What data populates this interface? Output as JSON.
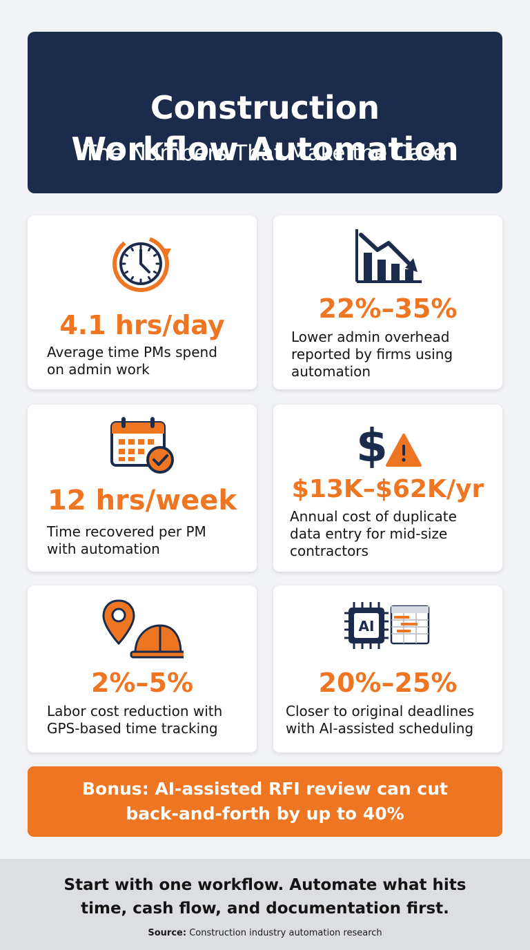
{
  "header": {
    "title_line1": "Construction",
    "title_line2": "Workflow Automation",
    "subtitle": "The Numbers That Make the Case"
  },
  "stats": [
    {
      "icon": "clock-refresh-icon",
      "value": "4.1 hrs/day",
      "desc_line1": "Average time PMs spend",
      "desc_line2": "on admin work"
    },
    {
      "icon": "declining-bar-chart-icon",
      "value": "22%–35%",
      "desc_line1": "Lower admin overhead",
      "desc_line2": "reported by firms using",
      "desc_line3": "automation"
    },
    {
      "icon": "calendar-check-icon",
      "value": "12 hrs/week",
      "desc_line1": "Time recovered per PM",
      "desc_line2": "with automation"
    },
    {
      "icon": "dollar-warning-icon",
      "value": "$13K–$62K/yr",
      "desc_line1": "Annual cost of duplicate",
      "desc_line2": "data entry for mid-size",
      "desc_line3": "contractors"
    },
    {
      "icon": "location-hardhat-icon",
      "value": "2%–5%",
      "desc_line1": "Labor cost reduction with",
      "desc_line2": "GPS-based time tracking"
    },
    {
      "icon": "ai-chip-schedule-icon",
      "value": "20%–25%",
      "desc_line1": "Closer to original deadlines",
      "desc_line2": "with AI-assisted scheduling",
      "chip_label": "AI"
    }
  ],
  "bonus": {
    "line1": "Bonus: AI-assisted RFI review can cut",
    "line2": "back-and-forth by up to 40%"
  },
  "footer": {
    "tagline_line1": "Start with one workflow. Automate what hits",
    "tagline_line2": "time, cash flow, and documentation first.",
    "source_label": "Source:",
    "source_text": "Construction industry automation research"
  },
  "colors": {
    "navy": "#1b2b4b",
    "orange": "#ee7521",
    "background": "#f1f2f5",
    "footer_band": "#dcdee2"
  }
}
